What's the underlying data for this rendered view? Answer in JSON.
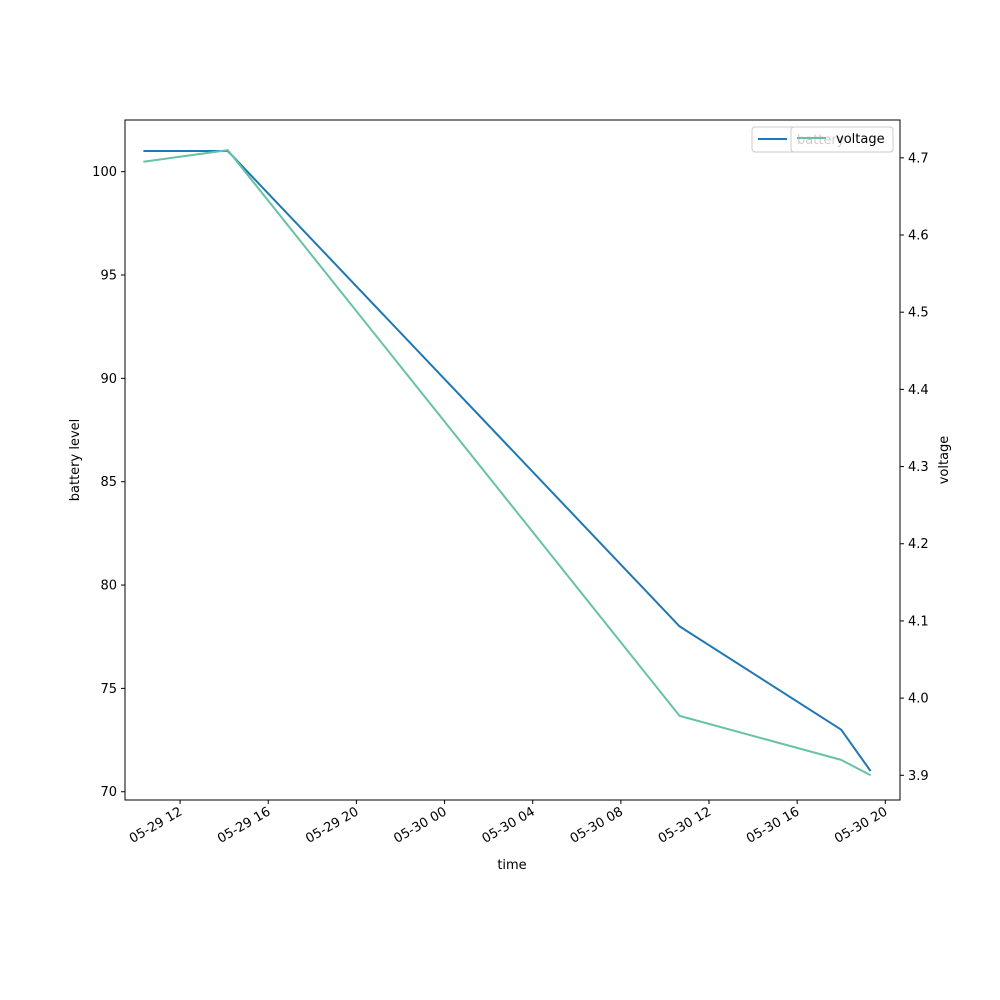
{
  "chart_data": {
    "type": "line",
    "xlabel": "time",
    "ylabel_left": "battery level",
    "ylabel_right": "voltage",
    "x_ticks": [
      "05-29 12",
      "05-29 16",
      "05-29 20",
      "05-30 00",
      "05-30 04",
      "05-30 08",
      "05-30 12",
      "05-30 16",
      "05-30 20"
    ],
    "x_tick_times": [
      "2024-05-29 12:00",
      "2024-05-29 16:00",
      "2024-05-29 20:00",
      "2024-05-30 00:00",
      "2024-05-30 04:00",
      "2024-05-30 08:00",
      "2024-05-30 12:00",
      "2024-05-30 16:00",
      "2024-05-30 20:00"
    ],
    "xlim": [
      "2024-05-29 09:30",
      "2024-05-30 20:40"
    ],
    "left_ticks": [
      70,
      75,
      80,
      85,
      90,
      95,
      100
    ],
    "left_ylim": [
      69.6,
      102.5
    ],
    "right_ticks": [
      "3.9",
      "4.0",
      "4.1",
      "4.2",
      "4.3",
      "4.4",
      "4.5",
      "4.6",
      "4.7"
    ],
    "right_ylim": [
      3.868,
      4.749
    ],
    "series": [
      {
        "name": "battery",
        "axis": "left",
        "color": "#1f77b4",
        "x": [
          "2024-05-29 10:20",
          "2024-05-29 14:10",
          "2024-05-30 10:40",
          "2024-05-30 18:00",
          "2024-05-30 19:20"
        ],
        "values": [
          101,
          101,
          78,
          73,
          71
        ]
      },
      {
        "name": "voltage",
        "axis": "right",
        "color": "#66c2a5",
        "x": [
          "2024-05-29 10:20",
          "2024-05-29 14:10",
          "2024-05-30 10:40",
          "2024-05-30 18:00",
          "2024-05-30 19:20"
        ],
        "values": [
          4.695,
          4.71,
          3.977,
          3.92,
          3.9
        ]
      }
    ],
    "legend_left": {
      "location": "upper right",
      "label": "battery"
    },
    "legend_right": {
      "location": "upper right",
      "label": "voltage"
    }
  }
}
